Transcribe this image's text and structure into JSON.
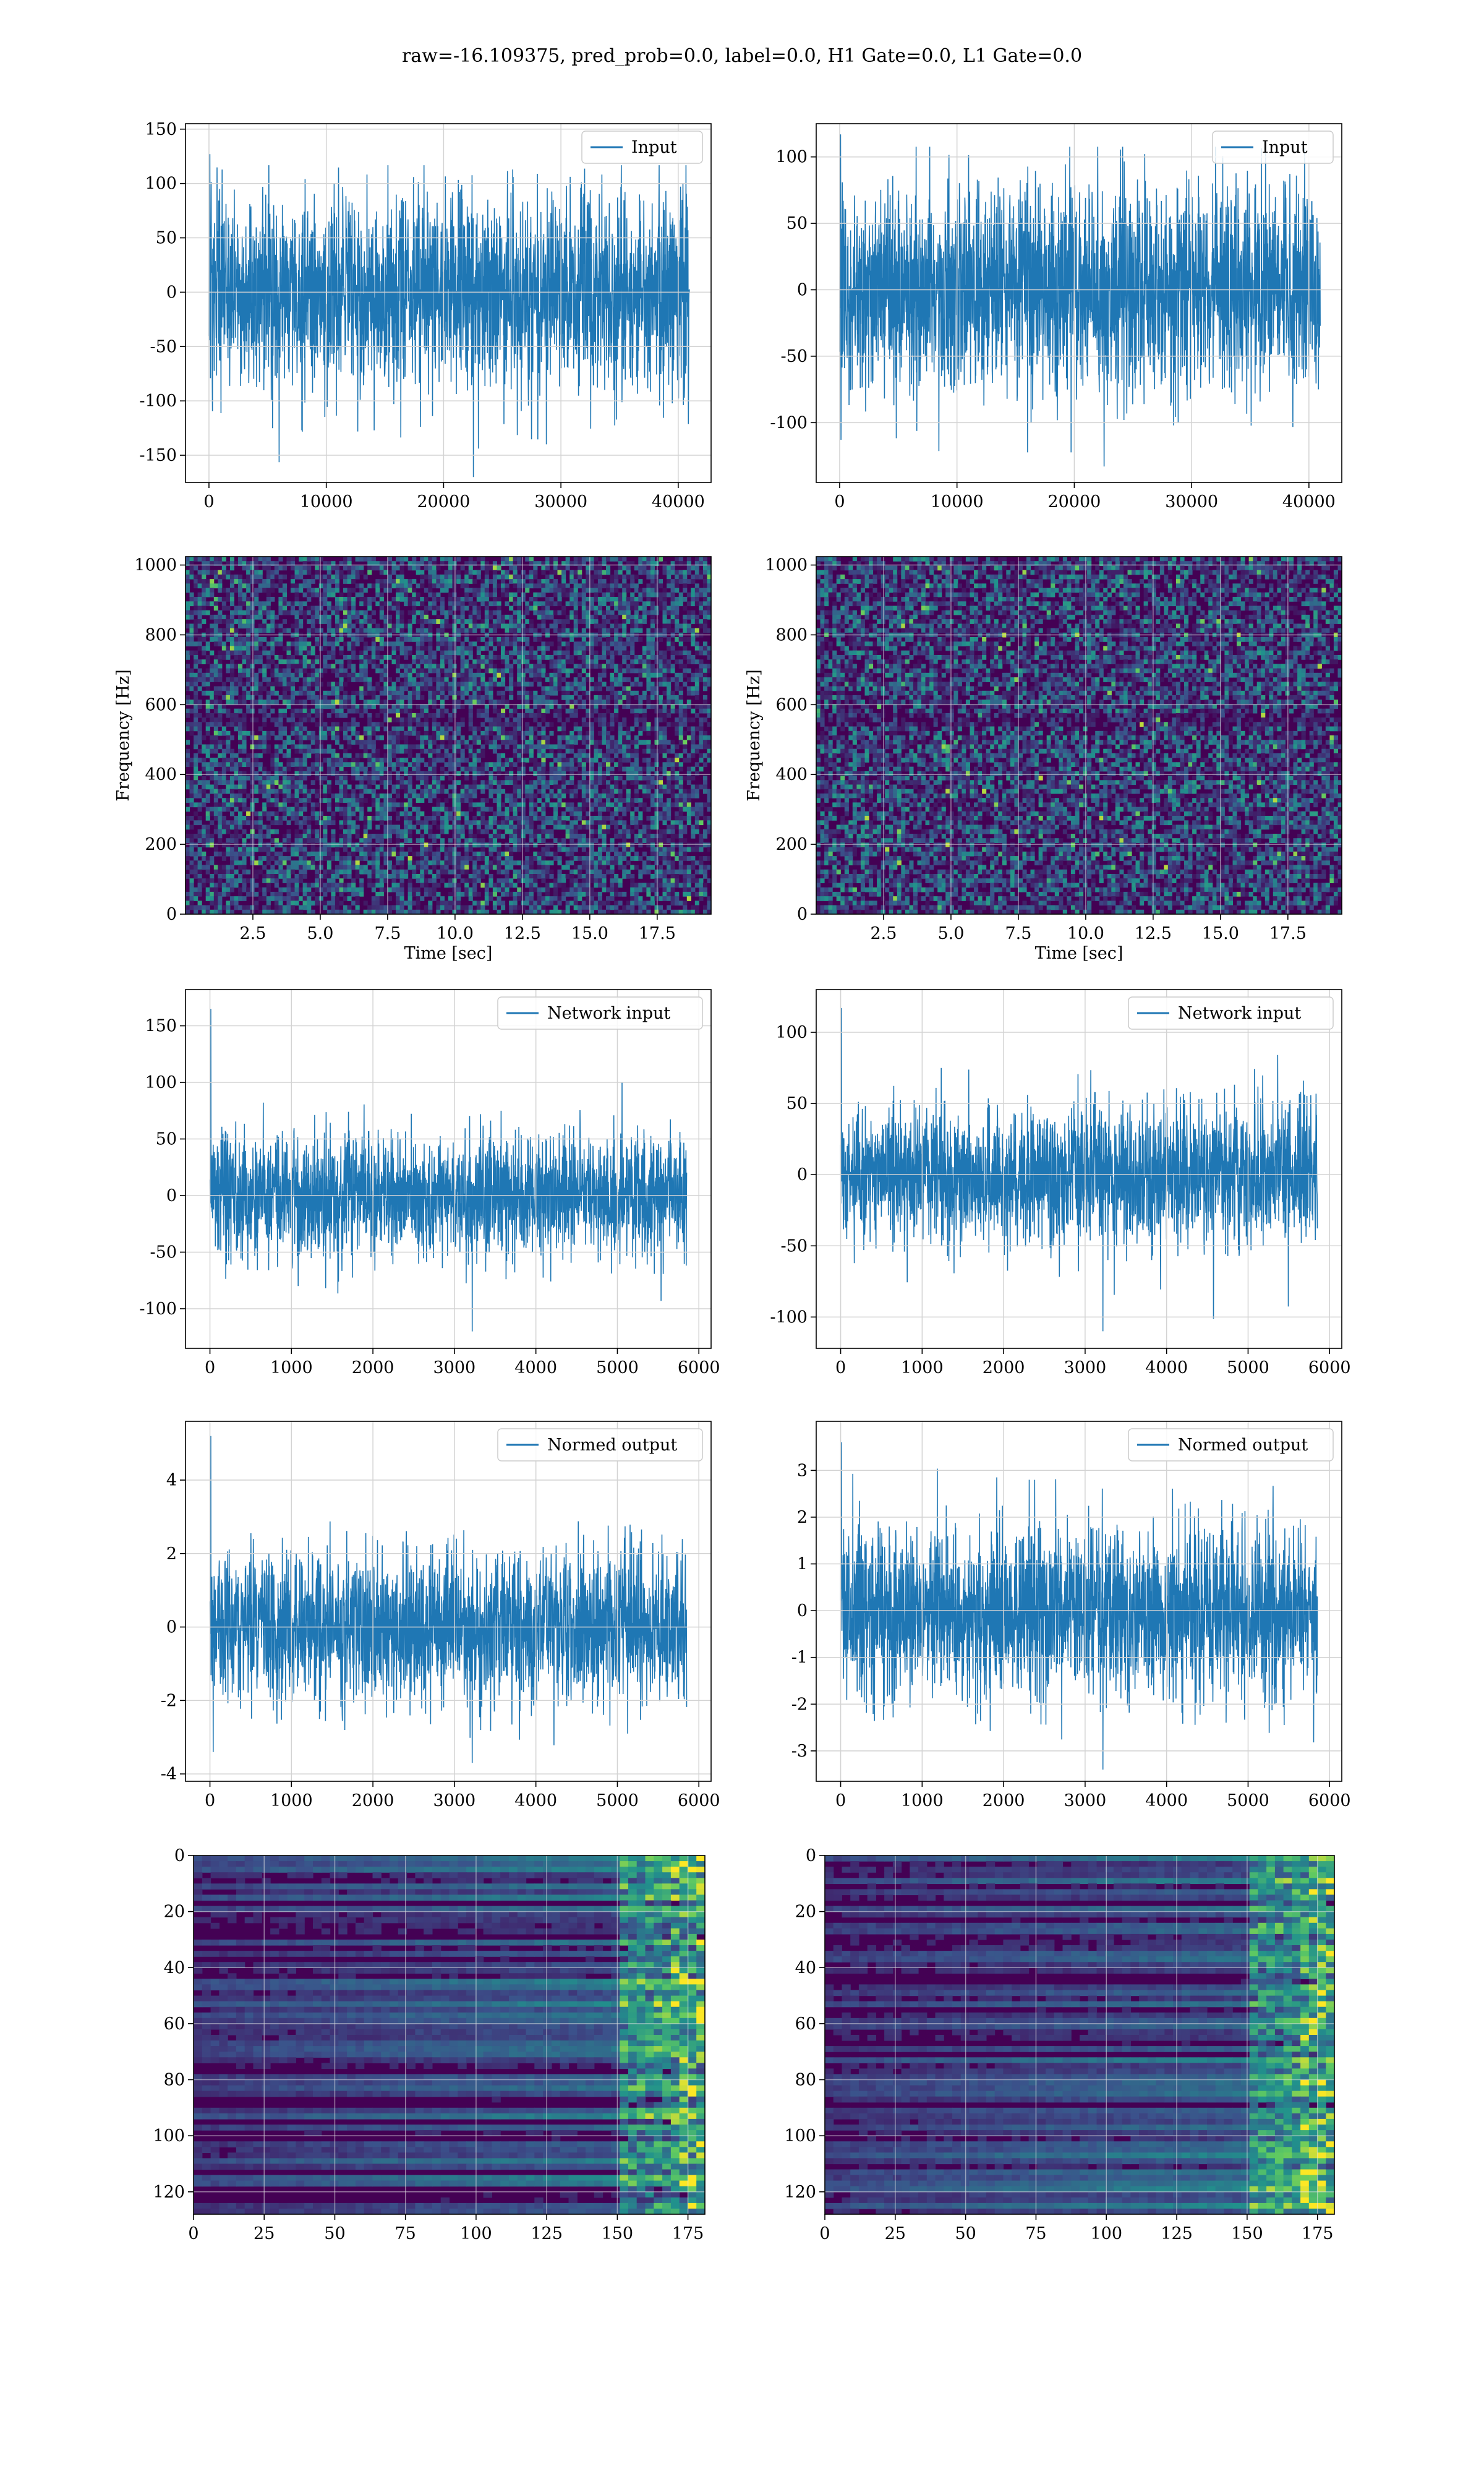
{
  "title": "raw=-16.109375, pred_prob=0.0, label=0.0, H1 Gate=0.0, L1 Gate=0.0",
  "colors": {
    "line": "#1f77b4",
    "grid": "#d3d3d3",
    "viridis": [
      "#440154",
      "#3b528b",
      "#21918c",
      "#5ec962",
      "#fde725"
    ]
  },
  "chart_data": [
    {
      "type": "line",
      "row": 0,
      "col": 0,
      "legend": "Input",
      "legend_loc": "upper right",
      "grid": true,
      "xlim": [
        -2000,
        42800
      ],
      "ylim": [
        -175,
        155
      ],
      "xticks": [
        0,
        10000,
        20000,
        30000,
        40000
      ],
      "yticks": [
        -150,
        -100,
        -50,
        0,
        50,
        100,
        150
      ],
      "xlabel": "",
      "ylabel": "",
      "x": [
        0,
        40960
      ],
      "signal": {
        "n_points": 40960,
        "typical_range": [
          -100,
          100
        ],
        "min": -170,
        "max": 127
      }
    },
    {
      "type": "line",
      "row": 0,
      "col": 1,
      "legend": "Input",
      "legend_loc": "upper right",
      "grid": true,
      "xlim": [
        -2000,
        42800
      ],
      "ylim": [
        -145,
        125
      ],
      "xticks": [
        0,
        10000,
        20000,
        30000,
        40000
      ],
      "yticks": [
        -100,
        -50,
        0,
        50,
        100
      ],
      "xlabel": "",
      "ylabel": "",
      "x": [
        0,
        40960
      ],
      "signal": {
        "n_points": 40960,
        "typical_range": [
          -85,
          85
        ],
        "min": -133,
        "max": 117
      }
    },
    {
      "type": "heatmap",
      "row": 1,
      "col": 0,
      "xlabel": "Time [sec]",
      "ylabel": "Frequency [Hz]",
      "grid": true,
      "xlim": [
        0,
        19.5
      ],
      "ylim": [
        0,
        1024
      ],
      "xticks": [
        2.5,
        5.0,
        7.5,
        10.0,
        12.5,
        15.0,
        17.5
      ],
      "yticks": [
        0,
        200,
        400,
        600,
        800,
        1000
      ],
      "colormap": "viridis"
    },
    {
      "type": "heatmap",
      "row": 1,
      "col": 1,
      "xlabel": "Time [sec]",
      "ylabel": "Frequency [Hz]",
      "grid": true,
      "xlim": [
        0,
        19.5
      ],
      "ylim": [
        0,
        1024
      ],
      "xticks": [
        2.5,
        5.0,
        7.5,
        10.0,
        12.5,
        15.0,
        17.5
      ],
      "yticks": [
        0,
        200,
        400,
        600,
        800,
        1000
      ],
      "colormap": "viridis"
    },
    {
      "type": "line",
      "row": 2,
      "col": 0,
      "legend": "Network input",
      "legend_loc": "upper right",
      "grid": true,
      "xlim": [
        -300,
        6150
      ],
      "ylim": [
        -135,
        182
      ],
      "xticks": [
        0,
        1000,
        2000,
        3000,
        4000,
        5000,
        6000
      ],
      "yticks": [
        -100,
        -50,
        0,
        50,
        100,
        150
      ],
      "xlabel": "",
      "ylabel": "",
      "x": [
        0,
        5850
      ],
      "signal": {
        "n_points": 5850,
        "typical_range": [
          -60,
          60
        ],
        "min": -120,
        "max": 165
      }
    },
    {
      "type": "line",
      "row": 2,
      "col": 1,
      "legend": "Network input",
      "legend_loc": "upper right",
      "grid": true,
      "xlim": [
        -300,
        6150
      ],
      "ylim": [
        -122,
        130
      ],
      "xticks": [
        0,
        1000,
        2000,
        3000,
        4000,
        5000,
        6000
      ],
      "yticks": [
        -100,
        -50,
        0,
        50,
        100
      ],
      "xlabel": "",
      "ylabel": "",
      "x": [
        0,
        5850
      ],
      "signal": {
        "n_points": 5850,
        "typical_range": [
          -55,
          55
        ],
        "min": -110,
        "max": 117
      }
    },
    {
      "type": "line",
      "row": 3,
      "col": 0,
      "legend": "Normed output",
      "legend_loc": "upper right",
      "grid": true,
      "xlim": [
        -300,
        6150
      ],
      "ylim": [
        -4.2,
        5.6
      ],
      "xticks": [
        0,
        1000,
        2000,
        3000,
        4000,
        5000,
        6000
      ],
      "yticks": [
        -4,
        -2,
        0,
        2,
        4
      ],
      "xlabel": "",
      "ylabel": "",
      "x": [
        0,
        5850
      ],
      "signal": {
        "n_points": 5850,
        "typical_range": [
          -2.2,
          2.2
        ],
        "min": -3.7,
        "max": 5.2
      }
    },
    {
      "type": "line",
      "row": 3,
      "col": 1,
      "legend": "Normed output",
      "legend_loc": "upper right",
      "grid": true,
      "xlim": [
        -300,
        6150
      ],
      "ylim": [
        -3.65,
        4.05
      ],
      "xticks": [
        0,
        1000,
        2000,
        3000,
        4000,
        5000,
        6000
      ],
      "yticks": [
        -3,
        -2,
        -1,
        0,
        1,
        2,
        3
      ],
      "xlabel": "",
      "ylabel": "",
      "x": [
        0,
        5850
      ],
      "signal": {
        "n_points": 5850,
        "typical_range": [
          -2.0,
          2.0
        ],
        "min": -3.4,
        "max": 3.6
      }
    },
    {
      "type": "heatmap",
      "row": 4,
      "col": 0,
      "xlabel": "",
      "ylabel": "",
      "grid": true,
      "xlim": [
        0,
        181
      ],
      "ylim": [
        128,
        0
      ],
      "xticks": [
        0,
        25,
        50,
        75,
        100,
        125,
        150,
        175
      ],
      "yticks": [
        0,
        20,
        40,
        60,
        80,
        100,
        120
      ],
      "shape": [
        128,
        181
      ],
      "colormap": "viridis"
    },
    {
      "type": "heatmap",
      "row": 4,
      "col": 1,
      "xlabel": "",
      "ylabel": "",
      "grid": true,
      "xlim": [
        0,
        181
      ],
      "ylim": [
        128,
        0
      ],
      "xticks": [
        0,
        25,
        50,
        75,
        100,
        125,
        150,
        175
      ],
      "yticks": [
        0,
        20,
        40,
        60,
        80,
        100,
        120
      ],
      "shape": [
        128,
        181
      ],
      "colormap": "viridis"
    }
  ]
}
